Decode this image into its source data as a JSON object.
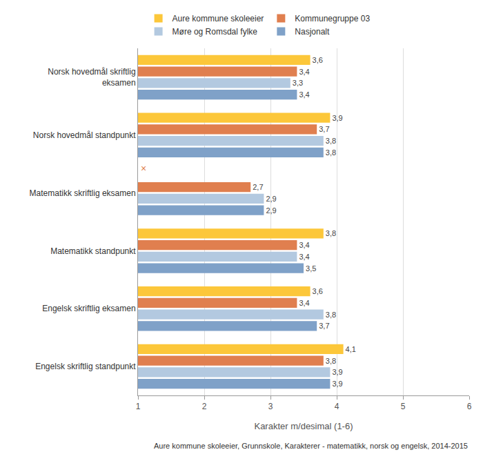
{
  "chart_data": {
    "type": "bar",
    "orientation": "horizontal",
    "categories": [
      "Norsk hovedmål skriftlig\neksamen",
      "Norsk hovedmål standpunkt",
      "Matematikk skriftlig eksamen",
      "Matematikk standpunkt",
      "Engelsk skriftlig eksamen",
      "Engelsk skriftlig standpunkt"
    ],
    "series": [
      {
        "name": "Aure kommune skoleeier",
        "color": "#fcc73a",
        "values": [
          3.6,
          3.9,
          null,
          3.8,
          3.6,
          4.1
        ],
        "value_labels": [
          "3,6",
          "3,9",
          null,
          "3,8",
          "3,6",
          "4,1"
        ]
      },
      {
        "name": "Kommunegruppe 03",
        "color": "#e07f4f",
        "values": [
          3.4,
          3.7,
          2.7,
          3.4,
          3.4,
          3.8
        ],
        "value_labels": [
          "3,4",
          "3,7",
          "2,7",
          "3,4",
          "3,4",
          "3,8"
        ]
      },
      {
        "name": "Møre og Romsdal fylke",
        "color": "#b3c9e0",
        "values": [
          3.3,
          3.8,
          2.9,
          3.4,
          3.8,
          3.9
        ],
        "value_labels": [
          "3,3",
          "3,8",
          "2,9",
          "3,4",
          "3,8",
          "3,9"
        ]
      },
      {
        "name": "Nasjonalt",
        "color": "#7fa1c8",
        "values": [
          3.4,
          3.8,
          2.9,
          3.5,
          3.7,
          3.9
        ],
        "value_labels": [
          "3,4",
          "3,8",
          "2,9",
          "3,5",
          "3,7",
          "3,9"
        ]
      }
    ],
    "x_label": "Karakter m/desimal (1-6)",
    "xlim": [
      1,
      6
    ],
    "xticks": [
      1,
      2,
      3,
      4,
      5,
      6
    ],
    "grid": true,
    "legend": "top",
    "data_labels": true,
    "annotations": [
      {
        "text": "×",
        "category": "Matematikk skriftlig eksamen",
        "series": "Aure kommune skoleeier",
        "color": "#e07f4f"
      }
    ],
    "caption": "Aure kommune skoleeier, Grunnskole, Karakterer - matematikk, norsk og engelsk, 2014-2015"
  }
}
